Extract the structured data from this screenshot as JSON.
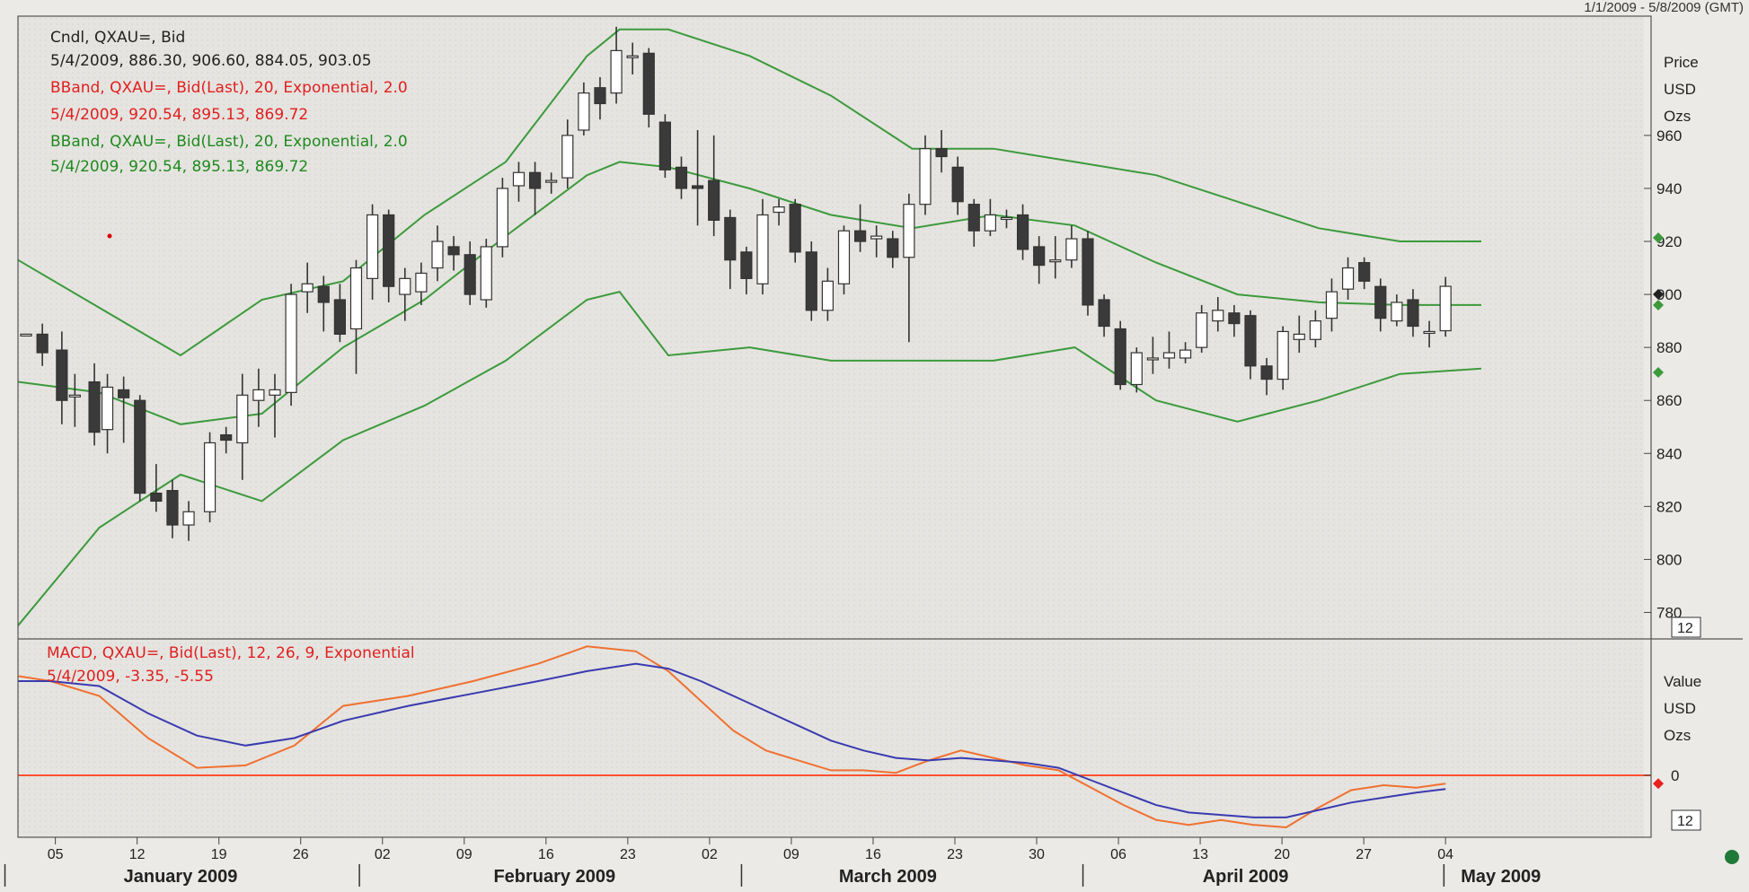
{
  "header": {
    "date_range": "1/1/2009 - 5/8/2009 (GMT)"
  },
  "legend": {
    "cndl_title": "Cndl, QXAU=, Bid",
    "cndl_values": "5/4/2009, 886.30, 906.60, 884.05, 903.05",
    "bband1_title": "BBand, QXAU=, Bid(Last), 20, Exponential, 2.0",
    "bband1_values": "5/4/2009, 920.54, 895.13, 869.72",
    "bband2_title": "BBand, QXAU=, Bid(Last), 20, Exponential, 2.0",
    "bband2_values": "5/4/2009, 920.54, 895.13, 869.72",
    "macd_title": "MACD, QXAU=, Bid(Last), 12, 26, 9, Exponential",
    "macd_values": "5/4/2009, -3.35, -5.55"
  },
  "price_axis": {
    "label_lines": [
      "Price",
      "USD",
      "Ozs"
    ],
    "ticks": [
      960,
      940,
      920,
      900,
      880,
      860,
      840,
      820,
      800,
      780
    ],
    "box_label": "12"
  },
  "macd_axis": {
    "label_lines": [
      "Value",
      "USD",
      "Ozs"
    ],
    "ticks": [
      0
    ],
    "box_label": "12"
  },
  "x_axis": {
    "day_ticks": [
      "05",
      "12",
      "19",
      "26",
      "02",
      "09",
      "16",
      "23",
      "02",
      "09",
      "16",
      "23",
      "30",
      "06",
      "13",
      "20",
      "27",
      "04"
    ],
    "months": [
      "January 2009",
      "February 2009",
      "March 2009",
      "April 2009",
      "May 2009"
    ]
  },
  "colors": {
    "band": "#3c9a3c",
    "up_candle": "#ffffff",
    "down_candle": "#3a3a3a",
    "macd_line": "#f07030",
    "signal_line": "#3a3ab0",
    "zero_line": "#ff5030",
    "legend_red": "#e02020",
    "legend_green": "#1f8a1f"
  },
  "chart_data": [
    {
      "type": "candlestick",
      "ylabel": "Price USD Ozs",
      "ylim": [
        770,
        1005
      ],
      "x_range": [
        0,
        100
      ],
      "candles": [
        {
          "x": 0.5,
          "open": 885,
          "close": 885,
          "high": 885,
          "low": 885
        },
        {
          "x": 1.5,
          "open": 885,
          "close": 878,
          "high": 889,
          "low": 873
        },
        {
          "x": 2.7,
          "open": 879,
          "close": 860,
          "high": 886,
          "low": 851
        },
        {
          "x": 3.5,
          "open": 862,
          "close": 862,
          "high": 870,
          "low": 850
        },
        {
          "x": 4.7,
          "open": 867,
          "close": 848,
          "high": 874,
          "low": 843
        },
        {
          "x": 5.5,
          "open": 849,
          "close": 865,
          "high": 870,
          "low": 840
        },
        {
          "x": 6.5,
          "open": 864,
          "close": 861,
          "high": 869,
          "low": 844
        },
        {
          "x": 7.5,
          "open": 860,
          "close": 825,
          "high": 862,
          "low": 822
        },
        {
          "x": 8.5,
          "open": 825,
          "close": 822,
          "high": 836,
          "low": 818
        },
        {
          "x": 9.5,
          "open": 826,
          "close": 813,
          "high": 830,
          "low": 808
        },
        {
          "x": 10.5,
          "open": 813,
          "close": 818,
          "high": 822,
          "low": 807
        },
        {
          "x": 11.8,
          "open": 818,
          "close": 844,
          "high": 848,
          "low": 814
        },
        {
          "x": 12.8,
          "open": 847,
          "close": 845,
          "high": 850,
          "low": 840
        },
        {
          "x": 13.8,
          "open": 844,
          "close": 862,
          "high": 870,
          "low": 830
        },
        {
          "x": 14.8,
          "open": 860,
          "close": 864,
          "high": 872,
          "low": 850
        },
        {
          "x": 15.8,
          "open": 862,
          "close": 864,
          "high": 870,
          "low": 846
        },
        {
          "x": 16.8,
          "open": 863,
          "close": 900,
          "high": 904,
          "low": 858
        },
        {
          "x": 17.8,
          "open": 901,
          "close": 904,
          "high": 912,
          "low": 893
        },
        {
          "x": 18.8,
          "open": 903,
          "close": 897,
          "high": 907,
          "low": 886
        },
        {
          "x": 19.8,
          "open": 898,
          "close": 885,
          "high": 904,
          "low": 882
        },
        {
          "x": 20.8,
          "open": 887,
          "close": 910,
          "high": 913,
          "low": 870
        },
        {
          "x": 21.8,
          "open": 906,
          "close": 930,
          "high": 934,
          "low": 898
        },
        {
          "x": 22.8,
          "open": 930,
          "close": 903,
          "high": 932,
          "low": 897
        },
        {
          "x": 23.8,
          "open": 900,
          "close": 906,
          "high": 910,
          "low": 890
        },
        {
          "x": 24.8,
          "open": 901,
          "close": 908,
          "high": 912,
          "low": 896
        },
        {
          "x": 25.8,
          "open": 910,
          "close": 920,
          "high": 926,
          "low": 905
        },
        {
          "x": 26.8,
          "open": 918,
          "close": 915,
          "high": 922,
          "low": 909
        },
        {
          "x": 27.8,
          "open": 915,
          "close": 900,
          "high": 920,
          "low": 896
        },
        {
          "x": 28.8,
          "open": 898,
          "close": 918,
          "high": 921,
          "low": 895
        },
        {
          "x": 29.8,
          "open": 918,
          "close": 940,
          "high": 944,
          "low": 914
        },
        {
          "x": 30.8,
          "open": 941,
          "close": 946,
          "high": 950,
          "low": 935
        },
        {
          "x": 31.8,
          "open": 946,
          "close": 940,
          "high": 950,
          "low": 930
        },
        {
          "x": 32.8,
          "open": 943,
          "close": 943,
          "high": 946,
          "low": 938
        },
        {
          "x": 33.8,
          "open": 944,
          "close": 960,
          "high": 966,
          "low": 940
        },
        {
          "x": 34.8,
          "open": 962,
          "close": 976,
          "high": 980,
          "low": 960
        },
        {
          "x": 35.8,
          "open": 978,
          "close": 972,
          "high": 982,
          "low": 966
        },
        {
          "x": 36.8,
          "open": 976,
          "close": 992,
          "high": 1001,
          "low": 972
        },
        {
          "x": 37.8,
          "open": 990,
          "close": 990,
          "high": 995,
          "low": 983
        },
        {
          "x": 38.8,
          "open": 991,
          "close": 968,
          "high": 993,
          "low": 963
        },
        {
          "x": 39.8,
          "open": 965,
          "close": 947,
          "high": 968,
          "low": 944
        },
        {
          "x": 40.8,
          "open": 948,
          "close": 940,
          "high": 952,
          "low": 936
        },
        {
          "x": 41.8,
          "open": 941,
          "close": 940,
          "high": 962,
          "low": 926
        },
        {
          "x": 42.8,
          "open": 943,
          "close": 928,
          "high": 960,
          "low": 922
        },
        {
          "x": 43.8,
          "open": 929,
          "close": 913,
          "high": 932,
          "low": 902
        },
        {
          "x": 44.8,
          "open": 916,
          "close": 906,
          "high": 918,
          "low": 900
        },
        {
          "x": 45.8,
          "open": 904,
          "close": 930,
          "high": 936,
          "low": 900
        },
        {
          "x": 46.8,
          "open": 931,
          "close": 933,
          "high": 936,
          "low": 926
        },
        {
          "x": 47.8,
          "open": 934,
          "close": 916,
          "high": 936,
          "low": 912
        },
        {
          "x": 48.8,
          "open": 916,
          "close": 894,
          "high": 920,
          "low": 890
        },
        {
          "x": 49.8,
          "open": 894,
          "close": 905,
          "high": 910,
          "low": 890
        },
        {
          "x": 50.8,
          "open": 904,
          "close": 924,
          "high": 926,
          "low": 900
        },
        {
          "x": 51.8,
          "open": 924,
          "close": 920,
          "high": 934,
          "low": 916
        },
        {
          "x": 52.8,
          "open": 921,
          "close": 922,
          "high": 926,
          "low": 914
        },
        {
          "x": 53.8,
          "open": 921,
          "close": 914,
          "high": 924,
          "low": 910
        },
        {
          "x": 54.8,
          "open": 914,
          "close": 934,
          "high": 938,
          "low": 882
        },
        {
          "x": 55.8,
          "open": 934,
          "close": 955,
          "high": 960,
          "low": 930
        },
        {
          "x": 56.8,
          "open": 955,
          "close": 952,
          "high": 962,
          "low": 946
        },
        {
          "x": 57.8,
          "open": 948,
          "close": 935,
          "high": 952,
          "low": 930
        },
        {
          "x": 58.8,
          "open": 934,
          "close": 924,
          "high": 936,
          "low": 918
        },
        {
          "x": 59.8,
          "open": 924,
          "close": 930,
          "high": 936,
          "low": 922
        },
        {
          "x": 60.8,
          "open": 929,
          "close": 929,
          "high": 932,
          "low": 925
        },
        {
          "x": 61.8,
          "open": 930,
          "close": 917,
          "high": 934,
          "low": 913
        },
        {
          "x": 62.8,
          "open": 918,
          "close": 911,
          "high": 922,
          "low": 904
        },
        {
          "x": 63.8,
          "open": 913,
          "close": 913,
          "high": 922,
          "low": 906
        },
        {
          "x": 64.8,
          "open": 913,
          "close": 921,
          "high": 926,
          "low": 910
        },
        {
          "x": 65.8,
          "open": 921,
          "close": 896,
          "high": 924,
          "low": 892
        },
        {
          "x": 66.8,
          "open": 898,
          "close": 888,
          "high": 900,
          "low": 884
        },
        {
          "x": 67.8,
          "open": 887,
          "close": 866,
          "high": 890,
          "low": 864
        },
        {
          "x": 68.8,
          "open": 866,
          "close": 878,
          "high": 880,
          "low": 863
        },
        {
          "x": 69.8,
          "open": 876,
          "close": 876,
          "high": 884,
          "low": 870
        },
        {
          "x": 70.8,
          "open": 876,
          "close": 878,
          "high": 886,
          "low": 872
        },
        {
          "x": 71.8,
          "open": 876,
          "close": 879,
          "high": 882,
          "low": 874
        },
        {
          "x": 72.8,
          "open": 880,
          "close": 893,
          "high": 896,
          "low": 878
        },
        {
          "x": 73.8,
          "open": 890,
          "close": 894,
          "high": 899,
          "low": 886
        },
        {
          "x": 74.8,
          "open": 893,
          "close": 889,
          "high": 896,
          "low": 884
        },
        {
          "x": 75.8,
          "open": 892,
          "close": 873,
          "high": 894,
          "low": 868
        },
        {
          "x": 76.8,
          "open": 873,
          "close": 868,
          "high": 876,
          "low": 862
        },
        {
          "x": 77.8,
          "open": 868,
          "close": 886,
          "high": 888,
          "low": 864
        },
        {
          "x": 78.8,
          "open": 883,
          "close": 885,
          "high": 892,
          "low": 878
        },
        {
          "x": 79.8,
          "open": 883,
          "close": 890,
          "high": 894,
          "low": 880
        },
        {
          "x": 80.8,
          "open": 891,
          "close": 901,
          "high": 906,
          "low": 886
        },
        {
          "x": 81.8,
          "open": 902,
          "close": 910,
          "high": 914,
          "low": 898
        },
        {
          "x": 82.8,
          "open": 912,
          "close": 905,
          "high": 914,
          "low": 902
        },
        {
          "x": 83.8,
          "open": 903,
          "close": 891,
          "high": 906,
          "low": 886
        },
        {
          "x": 84.8,
          "open": 890,
          "close": 897,
          "high": 900,
          "low": 888
        },
        {
          "x": 85.8,
          "open": 898,
          "close": 888,
          "high": 902,
          "low": 884
        },
        {
          "x": 86.8,
          "open": 886,
          "close": 886,
          "high": 890,
          "low": 880
        },
        {
          "x": 87.8,
          "open": 886.3,
          "close": 903.05,
          "high": 906.6,
          "low": 884.05
        }
      ],
      "bands": {
        "x": [
          0,
          5,
          10,
          15,
          20,
          25,
          30,
          35,
          37,
          40,
          45,
          50,
          55,
          60,
          65,
          70,
          75,
          80,
          85,
          90
        ],
        "upper": [
          913,
          895,
          877,
          898,
          905,
          930,
          950,
          990,
          1000,
          1000,
          990,
          975,
          955,
          955,
          950,
          945,
          935,
          925,
          920,
          920
        ],
        "middle": [
          867,
          863,
          851,
          855,
          880,
          898,
          922,
          945,
          950,
          948,
          940,
          930,
          925,
          930,
          926,
          912,
          900,
          897,
          896,
          896
        ],
        "lower": [
          775,
          812,
          832,
          822,
          845,
          858,
          875,
          898,
          901,
          877,
          880,
          875,
          875,
          875,
          880,
          860,
          852,
          860,
          870,
          872
        ]
      }
    },
    {
      "type": "line",
      "ylabel": "Value USD Ozs",
      "ylim": [
        -25,
        55
      ],
      "x_range": [
        0,
        100
      ],
      "zero_line": 0,
      "series": [
        {
          "name": "MACD",
          "x": [
            0,
            2,
            5,
            8,
            11,
            14,
            17,
            20,
            24,
            28,
            32,
            35,
            38,
            40,
            42,
            44,
            46,
            48,
            50,
            52,
            54,
            56,
            58,
            60,
            62,
            64,
            66,
            68,
            70,
            72,
            74,
            76,
            78,
            80,
            82,
            84,
            86,
            87.8
          ],
          "values": [
            40,
            38,
            32,
            15,
            3,
            4,
            12,
            28,
            32,
            38,
            45,
            52,
            50,
            42,
            30,
            18,
            10,
            6,
            2,
            2,
            1,
            6,
            10,
            7,
            4,
            2,
            -5,
            -12,
            -18,
            -20,
            -18,
            -20,
            -21,
            -13,
            -6,
            -4,
            -5,
            -3.35
          ]
        },
        {
          "name": "Signal",
          "x": [
            0,
            2,
            5,
            8,
            11,
            14,
            17,
            20,
            24,
            28,
            32,
            35,
            38,
            40,
            42,
            44,
            46,
            48,
            50,
            52,
            54,
            56,
            58,
            60,
            62,
            64,
            66,
            68,
            70,
            72,
            74,
            76,
            78,
            80,
            82,
            84,
            86,
            87.8
          ],
          "values": [
            38,
            38,
            36,
            25,
            16,
            12,
            15,
            22,
            28,
            33,
            38,
            42,
            45,
            43,
            38,
            32,
            26,
            20,
            14,
            10,
            7,
            6,
            7,
            6,
            5,
            3,
            -2,
            -7,
            -12,
            -15,
            -16,
            -17,
            -17,
            -14,
            -11,
            -9,
            -7,
            -5.55
          ]
        }
      ]
    }
  ]
}
